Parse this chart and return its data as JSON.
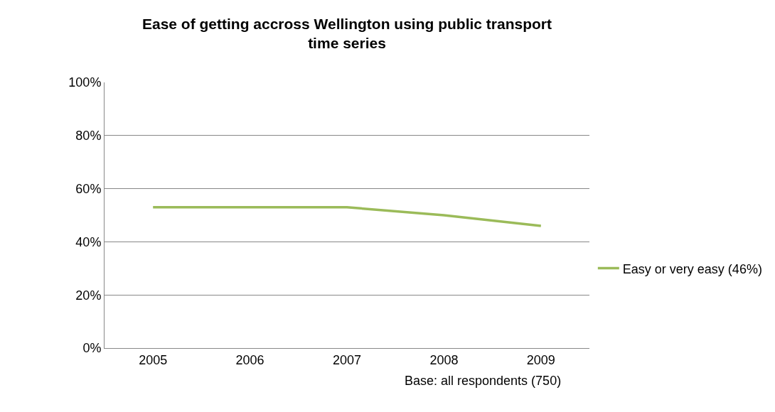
{
  "chart_data": {
    "type": "line",
    "title": "Ease of getting accross Wellington using public transport time series",
    "categories": [
      "2005",
      "2006",
      "2007",
      "2008",
      "2009"
    ],
    "series": [
      {
        "name": "Easy or very easy (46%)",
        "color": "#9bbb59",
        "values": [
          53,
          53,
          53,
          50,
          46
        ]
      }
    ],
    "ylim": [
      0,
      100
    ],
    "yticks": [
      {
        "value": 0,
        "label": "0%"
      },
      {
        "value": 20,
        "label": "20%"
      },
      {
        "value": 40,
        "label": "40%"
      },
      {
        "value": 60,
        "label": "60%"
      },
      {
        "value": 80,
        "label": "80%"
      },
      {
        "value": 100,
        "label": "100%"
      }
    ],
    "grid": "y",
    "legend": "right",
    "marker": "none",
    "line_style": "solid",
    "annotations": [
      "Base: all respondents (750)"
    ]
  }
}
